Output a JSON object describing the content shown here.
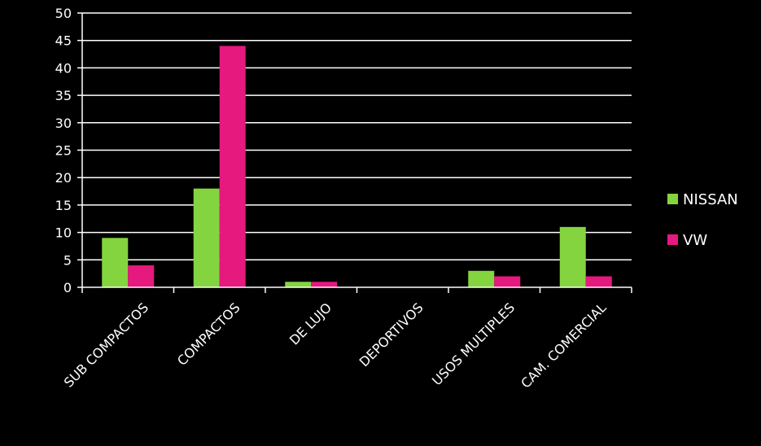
{
  "chart_data": {
    "type": "bar",
    "title": "",
    "xlabel": "",
    "ylabel": "",
    "categories": [
      "SUB COMPACTOS",
      "COMPACTOS",
      "DE LUJO",
      "DEPORTIVOS",
      "USOS MULTIPLES",
      "CAM. COMERCIAL"
    ],
    "series": [
      {
        "name": "NISSAN",
        "color": "#84d43f",
        "values": [
          9,
          18,
          1,
          0,
          3,
          11
        ]
      },
      {
        "name": "VW",
        "color": "#e5197e",
        "values": [
          4,
          44,
          1,
          0,
          2,
          2
        ]
      }
    ],
    "ylim": [
      0,
      50
    ],
    "yticks": [
      0,
      5,
      10,
      15,
      20,
      25,
      30,
      35,
      40,
      45,
      50
    ],
    "grid": true,
    "legend_position": "right",
    "background": "#000000",
    "foreground": "#ffffff"
  }
}
